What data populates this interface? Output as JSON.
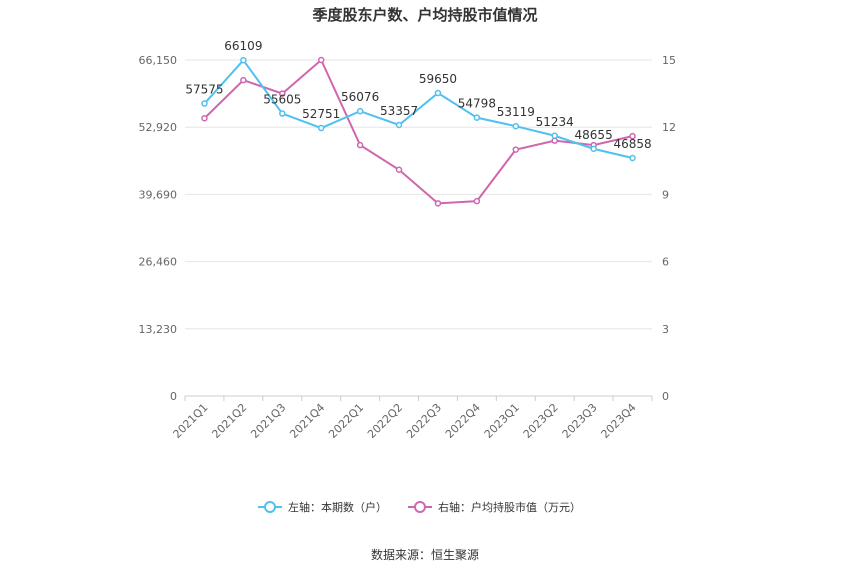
{
  "chart_data": {
    "type": "line",
    "title": "季度股东户数、户均持股市值情况",
    "categories": [
      "2021Q1",
      "2021Q2",
      "2021Q3",
      "2021Q4",
      "2022Q1",
      "2022Q2",
      "2022Q3",
      "2022Q4",
      "2023Q1",
      "2023Q2",
      "2023Q3",
      "2023Q4"
    ],
    "left_axis": {
      "ticks": [
        "0",
        "13,230",
        "26,460",
        "39,690",
        "52,920",
        "66,150"
      ],
      "min": 0,
      "max": 66150
    },
    "right_axis": {
      "ticks": [
        "0",
        "3",
        "6",
        "9",
        "12",
        "15"
      ],
      "min": 0,
      "max": 15
    },
    "series": [
      {
        "name": "左轴：本期数（户）",
        "axis": "left",
        "color": "#4fc1ee",
        "values": [
          57575,
          66109,
          55605,
          52751,
          56076,
          53357,
          59650,
          54798,
          53119,
          51234,
          48655,
          46858
        ],
        "labels": [
          "57575",
          "66109",
          "55605",
          "52751",
          "56076",
          "53357",
          "59650",
          "54798",
          "53119",
          "51234",
          "48655",
          "46858"
        ]
      },
      {
        "name": "右轴：户均持股市值（万元）",
        "axis": "right",
        "color": "#d066ad",
        "values": [
          12.4,
          14.1,
          13.5,
          15.0,
          11.2,
          10.1,
          8.6,
          8.7,
          11.0,
          11.4,
          11.2,
          11.6
        ]
      }
    ],
    "grid": true,
    "legend_position": "bottom"
  },
  "footer": {
    "source": "数据来源：恒生聚源"
  }
}
